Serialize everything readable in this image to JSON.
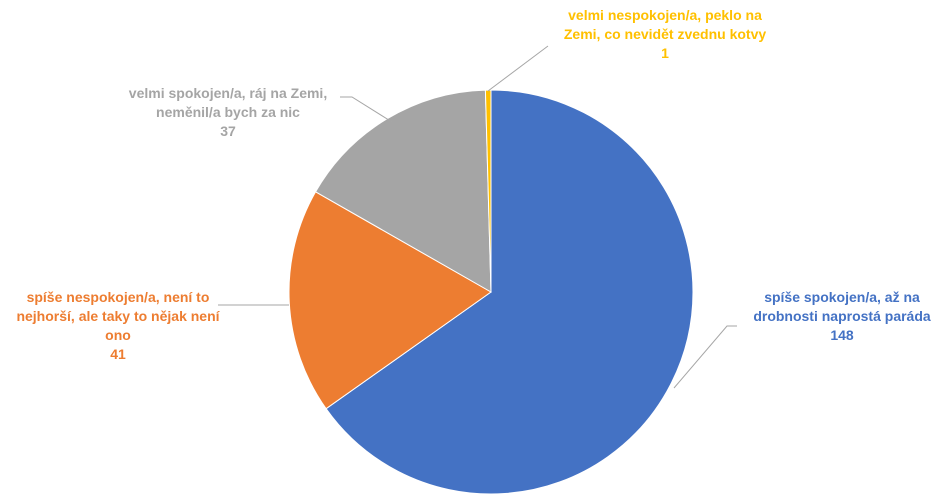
{
  "chart_data": {
    "type": "pie",
    "categories": [
      "spíše spokojen/a, až na drobnosti naprostá paráda",
      "spíše nespokojen/a, není to nejhorší, ale taky to nějak není ono",
      "velmi spokojen/a, ráj na Zemi, neměnil/a bych za nic",
      "velmi nespokojen/a, peklo na Zemi, co nevidět zvednu kotvy"
    ],
    "values": [
      148,
      41,
      37,
      1
    ],
    "colors": [
      "#4472C4",
      "#ED7D31",
      "#A5A5A5",
      "#FFC000"
    ],
    "labels": [
      {
        "lines": [
          "spíše spokojen/a, až na",
          "drobnosti naprostá paráda"
        ],
        "value": "148"
      },
      {
        "lines": [
          "spíše nespokojen/a, není to",
          "nejhorší, ale taky to nějak není",
          "ono"
        ],
        "value": "41"
      },
      {
        "lines": [
          "velmi spokojen/a, ráj na Zemi,",
          "neměnil/a bych za nic"
        ],
        "value": "37"
      },
      {
        "lines": [
          "velmi nespokojen/a, peklo na",
          "Zemi, co nevidět zvednu kotvy"
        ],
        "value": "1"
      }
    ],
    "start_angle_deg": 0,
    "direction": "clockwise",
    "legend": "none"
  }
}
